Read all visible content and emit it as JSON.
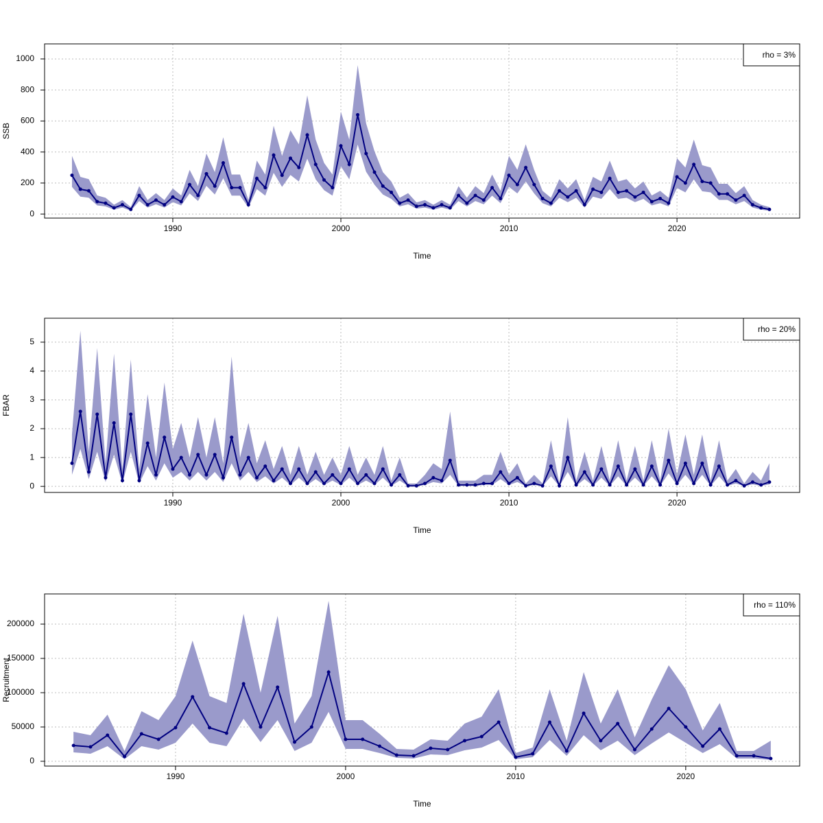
{
  "chart_data": [
    {
      "type": "line",
      "xlabel": "Time",
      "ylabel": "SSB",
      "annotation": "rho = 3%",
      "xlim": [
        1982.37,
        2027.3
      ],
      "ylim": [
        -26,
        1097
      ],
      "xticks": [
        1990,
        2000,
        2010,
        2020
      ],
      "yticks": [
        0,
        200,
        400,
        600,
        800,
        1000
      ],
      "grid": true,
      "x": [
        1984,
        1984.5,
        1985,
        1985.5,
        1986,
        1986.5,
        1987,
        1987.5,
        1988,
        1988.5,
        1989,
        1989.5,
        1990,
        1990.5,
        1991,
        1991.5,
        1992,
        1992.5,
        1993,
        1993.5,
        1994,
        1994.5,
        1995,
        1995.5,
        1996,
        1996.5,
        1997,
        1997.5,
        1998,
        1998.5,
        1999,
        1999.5,
        2000,
        2000.5,
        2001,
        2001.5,
        2002,
        2002.5,
        2003,
        2003.5,
        2004,
        2004.5,
        2005,
        2005.5,
        2006,
        2006.5,
        2007,
        2007.5,
        2008,
        2008.5,
        2009,
        2009.5,
        2010,
        2010.5,
        2011,
        2011.5,
        2012,
        2012.5,
        2013,
        2013.5,
        2014,
        2014.5,
        2015,
        2015.5,
        2016,
        2016.5,
        2017,
        2017.5,
        2018,
        2018.5,
        2019,
        2019.5,
        2020,
        2020.5,
        2021,
        2021.5,
        2022,
        2022.5,
        2023,
        2023.5,
        2024,
        2024.5,
        2025,
        2025.5
      ],
      "color": "#000080",
      "band_color": "#9a9acb",
      "values": [
        250,
        160,
        150,
        80,
        70,
        40,
        60,
        30,
        120,
        60,
        90,
        60,
        110,
        80,
        190,
        120,
        260,
        180,
        330,
        170,
        170,
        60,
        230,
        170,
        380,
        250,
        360,
        300,
        510,
        320,
        220,
        170,
        440,
        320,
        640,
        390,
        270,
        180,
        140,
        70,
        90,
        50,
        60,
        40,
        60,
        40,
        120,
        70,
        120,
        90,
        170,
        100,
        250,
        190,
        300,
        190,
        100,
        70,
        150,
        110,
        150,
        60,
        160,
        140,
        230,
        140,
        150,
        110,
        140,
        80,
        100,
        70,
        240,
        200,
        320,
        210,
        200,
        130,
        130,
        90,
        120,
        60,
        40,
        30
      ],
      "upper": [
        375,
        240,
        225,
        120,
        105,
        60,
        90,
        45,
        180,
        90,
        135,
        90,
        165,
        120,
        285,
        180,
        390,
        270,
        495,
        255,
        255,
        90,
        345,
        255,
        570,
        375,
        540,
        450,
        765,
        480,
        330,
        255,
        660,
        480,
        960,
        585,
        405,
        270,
        210,
        105,
        135,
        75,
        90,
        60,
        90,
        60,
        180,
        105,
        180,
        135,
        255,
        150,
        375,
        285,
        450,
        285,
        150,
        105,
        225,
        165,
        225,
        90,
        240,
        210,
        345,
        210,
        225,
        165,
        210,
        120,
        150,
        105,
        360,
        300,
        480,
        315,
        300,
        195,
        195,
        135,
        180,
        90,
        60,
        45
      ],
      "lower": [
        175,
        112,
        105,
        56,
        49,
        28,
        42,
        21,
        84,
        42,
        63,
        42,
        77,
        56,
        133,
        84,
        182,
        126,
        231,
        119,
        119,
        42,
        161,
        119,
        266,
        175,
        252,
        210,
        357,
        224,
        154,
        119,
        308,
        224,
        448,
        273,
        189,
        126,
        98,
        49,
        63,
        35,
        42,
        28,
        42,
        28,
        84,
        49,
        84,
        63,
        119,
        70,
        175,
        133,
        210,
        133,
        70,
        49,
        105,
        77,
        105,
        42,
        112,
        98,
        161,
        98,
        105,
        77,
        98,
        56,
        70,
        49,
        168,
        140,
        224,
        147,
        140,
        91,
        91,
        63,
        84,
        42,
        28,
        21
      ]
    },
    {
      "type": "line",
      "xlabel": "Time",
      "ylabel": "FBAR",
      "annotation": "rho = 20%",
      "xlim": [
        1982.37,
        2027.3
      ],
      "ylim": [
        -0.21,
        5.83
      ],
      "xticks": [
        1990,
        2000,
        2010,
        2020
      ],
      "yticks": [
        0,
        1,
        2,
        3,
        4,
        5
      ],
      "grid": true,
      "x": [
        1984,
        1984.5,
        1985,
        1985.5,
        1986,
        1986.5,
        1987,
        1987.5,
        1988,
        1988.5,
        1989,
        1989.5,
        1990,
        1990.5,
        1991,
        1991.5,
        1992,
        1992.5,
        1993,
        1993.5,
        1994,
        1994.5,
        1995,
        1995.5,
        1996,
        1996.5,
        1997,
        1997.5,
        1998,
        1998.5,
        1999,
        1999.5,
        2000,
        2000.5,
        2001,
        2001.5,
        2002,
        2002.5,
        2003,
        2003.5,
        2004,
        2004.5,
        2005,
        2005.5,
        2006,
        2006.5,
        2007,
        2007.5,
        2008,
        2008.5,
        2009,
        2009.5,
        2010,
        2010.5,
        2011,
        2011.5,
        2012,
        2012.5,
        2013,
        2013.5,
        2014,
        2014.5,
        2015,
        2015.5,
        2016,
        2016.5,
        2017,
        2017.5,
        2018,
        2018.5,
        2019,
        2019.5,
        2020,
        2020.5,
        2021,
        2021.5,
        2022,
        2022.5,
        2023,
        2023.5,
        2024,
        2024.5,
        2025,
        2025.5
      ],
      "color": "#000080",
      "band_color": "#9a9acb",
      "values": [
        0.8,
        2.6,
        0.5,
        2.5,
        0.3,
        2.2,
        0.2,
        2.5,
        0.2,
        1.5,
        0.4,
        1.7,
        0.6,
        1.0,
        0.4,
        1.1,
        0.4,
        1.1,
        0.3,
        1.7,
        0.4,
        1.0,
        0.3,
        0.7,
        0.2,
        0.6,
        0.1,
        0.6,
        0.1,
        0.5,
        0.1,
        0.4,
        0.1,
        0.6,
        0.1,
        0.4,
        0.1,
        0.6,
        0.05,
        0.4,
        0.02,
        0.02,
        0.1,
        0.3,
        0.2,
        0.9,
        0.05,
        0.05,
        0.05,
        0.1,
        0.1,
        0.5,
        0.1,
        0.3,
        0.02,
        0.1,
        0.02,
        0.7,
        0.02,
        1.0,
        0.05,
        0.5,
        0.05,
        0.6,
        0.05,
        0.7,
        0.05,
        0.6,
        0.05,
        0.7,
        0.05,
        0.9,
        0.1,
        0.8,
        0.1,
        0.8,
        0.05,
        0.7,
        0.05,
        0.2,
        0.02,
        0.15,
        0.05,
        0.15
      ],
      "upper": [
        1.8,
        5.4,
        1.2,
        4.8,
        0.8,
        4.6,
        0.6,
        4.4,
        0.6,
        3.2,
        1.0,
        3.6,
        1.3,
        2.2,
        1.0,
        2.4,
        1.0,
        2.4,
        0.8,
        4.5,
        1.0,
        2.2,
        0.8,
        1.6,
        0.6,
        1.4,
        0.4,
        1.4,
        0.4,
        1.2,
        0.4,
        1.0,
        0.4,
        1.4,
        0.4,
        1.0,
        0.4,
        1.4,
        0.2,
        1.0,
        0.1,
        0.1,
        0.4,
        0.8,
        0.6,
        2.6,
        0.2,
        0.2,
        0.2,
        0.4,
        0.4,
        1.2,
        0.4,
        0.8,
        0.1,
        0.4,
        0.1,
        1.6,
        0.1,
        2.4,
        0.2,
        1.2,
        0.2,
        1.4,
        0.2,
        1.6,
        0.2,
        1.4,
        0.2,
        1.6,
        0.2,
        2.0,
        0.4,
        1.8,
        0.4,
        1.8,
        0.2,
        1.6,
        0.2,
        0.6,
        0.1,
        0.5,
        0.2,
        0.8
      ],
      "lower": [
        0.4,
        1.3,
        0.25,
        1.2,
        0.15,
        1.1,
        0.1,
        1.2,
        0.1,
        0.7,
        0.2,
        0.8,
        0.3,
        0.5,
        0.2,
        0.5,
        0.2,
        0.5,
        0.15,
        0.8,
        0.2,
        0.5,
        0.15,
        0.35,
        0.1,
        0.3,
        0.05,
        0.3,
        0.05,
        0.25,
        0.05,
        0.2,
        0.05,
        0.3,
        0.05,
        0.2,
        0.05,
        0.3,
        0.02,
        0.2,
        0.01,
        0.01,
        0.05,
        0.15,
        0.1,
        0.4,
        0.02,
        0.02,
        0.02,
        0.05,
        0.05,
        0.25,
        0.05,
        0.15,
        0.01,
        0.05,
        0.01,
        0.35,
        0.01,
        0.5,
        0.02,
        0.25,
        0.02,
        0.3,
        0.02,
        0.35,
        0.02,
        0.3,
        0.02,
        0.35,
        0.02,
        0.45,
        0.05,
        0.4,
        0.05,
        0.4,
        0.02,
        0.35,
        0.02,
        0.1,
        0.01,
        0.07,
        0.02,
        0.07
      ]
    },
    {
      "type": "line",
      "xlabel": "Time",
      "ylabel": "Recruitment",
      "annotation": "rho = 110%",
      "xlim": [
        1982.3,
        2026.7
      ],
      "ylim": [
        -7000,
        244000
      ],
      "xticks": [
        1990,
        2000,
        2010,
        2020
      ],
      "yticks": [
        0,
        50000,
        100000,
        150000,
        200000
      ],
      "grid": true,
      "x": [
        1984,
        1985,
        1986,
        1987,
        1988,
        1989,
        1990,
        1991,
        1992,
        1993,
        1994,
        1995,
        1996,
        1997,
        1998,
        1999,
        2000,
        2001,
        2002,
        2003,
        2004,
        2005,
        2006,
        2007,
        2008,
        2009,
        2010,
        2011,
        2012,
        2013,
        2014,
        2015,
        2016,
        2017,
        2018,
        2019,
        2020,
        2021,
        2022,
        2023,
        2024,
        2025
      ],
      "color": "#000080",
      "band_color": "#9a9acb",
      "values": [
        23000,
        21000,
        38000,
        7000,
        40000,
        32000,
        49000,
        94000,
        49000,
        41000,
        113000,
        50000,
        108000,
        28000,
        50000,
        130000,
        32000,
        32000,
        22000,
        9000,
        8000,
        19000,
        17000,
        30000,
        36000,
        57000,
        6000,
        11000,
        57000,
        15000,
        70000,
        30000,
        55000,
        17000,
        47000,
        77000,
        50000,
        22000,
        47000,
        8000,
        8000,
        4000
      ],
      "upper": [
        43000,
        38000,
        68000,
        15000,
        73000,
        60000,
        95000,
        176000,
        95000,
        85000,
        215000,
        100000,
        212000,
        55000,
        95000,
        234000,
        60000,
        60000,
        40000,
        18000,
        17000,
        32000,
        30000,
        55000,
        65000,
        105000,
        12000,
        20000,
        105000,
        30000,
        130000,
        55000,
        105000,
        35000,
        90000,
        140000,
        105000,
        45000,
        85000,
        15000,
        15000,
        30000
      ],
      "lower": [
        13000,
        11000,
        22000,
        3000,
        22000,
        17000,
        27000,
        55000,
        27000,
        22000,
        62000,
        28000,
        60000,
        15000,
        27000,
        72000,
        18000,
        18000,
        12000,
        5000,
        4000,
        10000,
        9000,
        16000,
        20000,
        31000,
        3000,
        6000,
        31000,
        8000,
        38000,
        16000,
        30000,
        9000,
        26000,
        42000,
        27000,
        12000,
        25000,
        4000,
        4000,
        2000
      ]
    }
  ]
}
